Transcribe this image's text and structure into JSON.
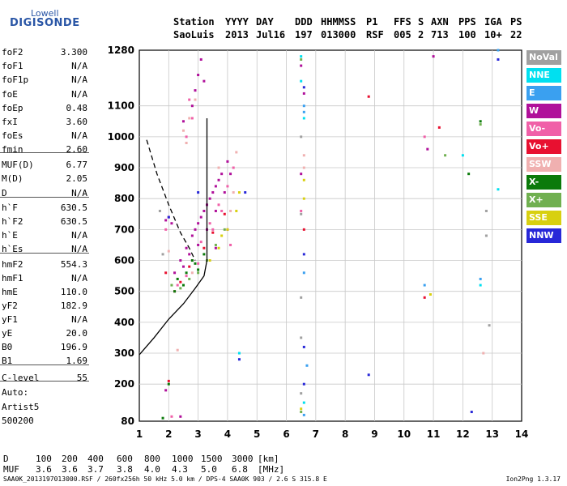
{
  "logo": {
    "top": "Lowell",
    "bottom": "DIGISONDE"
  },
  "header": {
    "row1": [
      "Station",
      "YYYY",
      "DAY",
      "DDD",
      "HHMMSS",
      "P1",
      "FFS",
      "S",
      "AXN",
      "PPS",
      "IGA",
      "PS"
    ],
    "row2": [
      "SaoLuis",
      "2013",
      "Jul16",
      "197",
      "013000",
      "RSF",
      "005",
      "2",
      "713",
      "100",
      "10+",
      "22"
    ]
  },
  "params": [
    {
      "k": "foF2",
      "v": "3.300"
    },
    {
      "k": "foF1",
      "v": "N/A"
    },
    {
      "k": "foF1p",
      "v": "N/A"
    },
    {
      "k": "foE",
      "v": "N/A"
    },
    {
      "k": "foEp",
      "v": "0.48"
    },
    {
      "k": "fxI",
      "v": "3.60"
    },
    {
      "k": "foEs",
      "v": "N/A"
    },
    {
      "k": "fmin",
      "v": "2.60"
    },
    {
      "k": "MUF(D)",
      "v": "6.77"
    },
    {
      "k": "M(D)",
      "v": "2.05"
    },
    {
      "k": "D",
      "v": "N/A"
    },
    {
      "k": "h`F",
      "v": "630.5"
    },
    {
      "k": "h`F2",
      "v": "630.5"
    },
    {
      "k": "h`E",
      "v": "N/A"
    },
    {
      "k": "h`Es",
      "v": "N/A"
    },
    {
      "k": "hmF2",
      "v": "554.3"
    },
    {
      "k": "hmF1",
      "v": "N/A"
    },
    {
      "k": "hmE",
      "v": "110.0"
    },
    {
      "k": "yF2",
      "v": "182.9"
    },
    {
      "k": "yF1",
      "v": "N/A"
    },
    {
      "k": "yE",
      "v": "20.0"
    },
    {
      "k": "B0",
      "v": "196.9"
    },
    {
      "k": "B1",
      "v": "1.69"
    },
    {
      "k": "C-level",
      "v": "55"
    }
  ],
  "auto": {
    "line1": "Auto:",
    "line2": "Artist5",
    "line3": "500200"
  },
  "bottom_table": {
    "d_label": "D",
    "d_values": [
      "100",
      "200",
      "400",
      "600",
      "800",
      "1000",
      "1500",
      "3000"
    ],
    "d_unit": "[km]",
    "muf_label": "MUF",
    "muf_values": [
      "3.6",
      "3.6",
      "3.7",
      "3.8",
      "4.0",
      "4.3",
      "5.0",
      "6.8"
    ],
    "muf_unit": "[MHz]"
  },
  "footer": {
    "left": "SAA0K_2013197013000.RSF / 260fx256h 50 kHz 5.0 km / DPS-4 SAA0K 903 / 2.6 S 315.8 E",
    "right": "Ion2Png 1.3.17"
  },
  "legend": [
    {
      "label": "NoVal",
      "color": "#a0a0a0"
    },
    {
      "label": "NNE",
      "color": "#00e0f0"
    },
    {
      "label": "E",
      "color": "#3aa0f0"
    },
    {
      "label": "W",
      "color": "#b0109a"
    },
    {
      "label": "Vo-",
      "color": "#f060a8"
    },
    {
      "label": "Vo+",
      "color": "#e81030"
    },
    {
      "label": "SSW",
      "color": "#f0b0b0"
    },
    {
      "label": "X-",
      "color": "#0a7a0a"
    },
    {
      "label": "X+",
      "color": "#70b050"
    },
    {
      "label": "SSE",
      "color": "#d8d010"
    },
    {
      "label": "NNW",
      "color": "#2828d8"
    }
  ],
  "chart_data": {
    "type": "scatter",
    "title": "",
    "xlabel": "",
    "ylabel": "",
    "xlim": [
      1,
      14
    ],
    "ylim": [
      80,
      1280
    ],
    "x_ticks": [
      1,
      2,
      3,
      4,
      5,
      6,
      7,
      8,
      9,
      10,
      11,
      12,
      13,
      14
    ],
    "y_ticks": [
      80,
      200,
      300,
      400,
      500,
      600,
      700,
      800,
      900,
      1000,
      1100,
      1280
    ],
    "grid": true,
    "legend_position": "right",
    "profile_curve": [
      [
        1.0,
        295
      ],
      [
        1.5,
        350
      ],
      [
        2.0,
        410
      ],
      [
        2.5,
        460
      ],
      [
        2.9,
        510
      ],
      [
        3.2,
        550
      ],
      [
        3.3,
        600
      ],
      [
        3.3,
        800
      ],
      [
        3.3,
        1060
      ]
    ],
    "dashed_trace": [
      [
        1.25,
        990
      ],
      [
        1.6,
        880
      ],
      [
        2.0,
        780
      ],
      [
        2.4,
        690
      ],
      [
        2.7,
        640
      ],
      [
        2.9,
        600
      ]
    ],
    "series": [
      {
        "name": "W",
        "color": "#b0109a",
        "points": [
          [
            2.2,
            560
          ],
          [
            2.4,
            600
          ],
          [
            2.6,
            640
          ],
          [
            2.8,
            680
          ],
          [
            3.0,
            720
          ],
          [
            3.2,
            760
          ],
          [
            3.4,
            800
          ],
          [
            3.6,
            840
          ],
          [
            3.8,
            880
          ],
          [
            4.0,
            920
          ],
          [
            2.9,
            700
          ],
          [
            3.1,
            740
          ],
          [
            3.3,
            780
          ],
          [
            3.5,
            820
          ],
          [
            3.7,
            860
          ],
          [
            2.5,
            580
          ],
          [
            2.7,
            620
          ],
          [
            3.0,
            650
          ],
          [
            3.3,
            700
          ],
          [
            3.6,
            760
          ],
          [
            3.9,
            820
          ],
          [
            4.1,
            880
          ],
          [
            1.9,
            730
          ],
          [
            2.0,
            740
          ],
          [
            2.1,
            720
          ],
          [
            2.9,
            1150
          ],
          [
            3.0,
            1200
          ],
          [
            3.1,
            1250
          ],
          [
            2.8,
            1100
          ],
          [
            3.2,
            1180
          ],
          [
            6.6,
            1140
          ],
          [
            6.5,
            1230
          ],
          [
            6.5,
            880
          ],
          [
            11.0,
            1260
          ],
          [
            10.8,
            960
          ],
          [
            2.5,
            1050
          ],
          [
            1.9,
            180
          ],
          [
            2.4,
            95
          ],
          [
            4.0,
            700
          ],
          [
            3.6,
            640
          ]
        ]
      },
      {
        "name": "Vo-",
        "color": "#f060a8",
        "points": [
          [
            2.6,
            550
          ],
          [
            2.8,
            600
          ],
          [
            3.1,
            660
          ],
          [
            3.4,
            720
          ],
          [
            3.7,
            780
          ],
          [
            4.0,
            840
          ],
          [
            4.2,
            900
          ],
          [
            3.5,
            700
          ],
          [
            3.8,
            760
          ],
          [
            2.3,
            520
          ],
          [
            3.0,
            590
          ],
          [
            2.8,
            1060
          ],
          [
            2.6,
            1000
          ],
          [
            2.7,
            1120
          ],
          [
            1.9,
            700
          ],
          [
            4.1,
            650
          ],
          [
            10.7,
            1000
          ],
          [
            6.5,
            760
          ],
          [
            2.1,
            95
          ]
        ]
      },
      {
        "name": "Vo+",
        "color": "#e81030",
        "points": [
          [
            2.4,
            530
          ],
          [
            2.7,
            580
          ],
          [
            3.2,
            640
          ],
          [
            3.5,
            690
          ],
          [
            3.9,
            750
          ],
          [
            2.2,
            500
          ],
          [
            1.9,
            560
          ],
          [
            8.8,
            1130
          ],
          [
            11.2,
            1030
          ],
          [
            10.7,
            480
          ],
          [
            2.0,
            210
          ],
          [
            6.6,
            700
          ]
        ]
      },
      {
        "name": "SSW",
        "color": "#f0b0b0",
        "points": [
          [
            2.5,
            1020
          ],
          [
            2.6,
            980
          ],
          [
            2.7,
            1060
          ],
          [
            2.9,
            1120
          ],
          [
            4.3,
            950
          ],
          [
            4.2,
            820
          ],
          [
            4.1,
            760
          ],
          [
            3.7,
            900
          ],
          [
            2.8,
            560
          ],
          [
            2.0,
            630
          ],
          [
            6.6,
            940
          ],
          [
            6.6,
            900
          ],
          [
            12.7,
            300
          ],
          [
            2.3,
            310
          ]
        ]
      },
      {
        "name": "X-",
        "color": "#0a7a0a",
        "points": [
          [
            2.3,
            540
          ],
          [
            2.6,
            560
          ],
          [
            2.9,
            590
          ],
          [
            3.2,
            620
          ],
          [
            2.5,
            520
          ],
          [
            2.8,
            600
          ],
          [
            3.0,
            570
          ],
          [
            2.2,
            500
          ],
          [
            12.6,
            1050
          ],
          [
            12.2,
            880
          ],
          [
            2.0,
            200
          ],
          [
            1.8,
            90
          ]
        ]
      },
      {
        "name": "X+",
        "color": "#70b050",
        "points": [
          [
            2.4,
            510
          ],
          [
            2.7,
            540
          ],
          [
            3.0,
            560
          ],
          [
            3.3,
            600
          ],
          [
            3.6,
            650
          ],
          [
            3.9,
            700
          ],
          [
            2.1,
            520
          ],
          [
            11.4,
            940
          ],
          [
            12.6,
            1040
          ],
          [
            6.5,
            1250
          ],
          [
            6.5,
            110
          ]
        ]
      },
      {
        "name": "SSE",
        "color": "#d8d010",
        "points": [
          [
            3.4,
            600
          ],
          [
            3.7,
            640
          ],
          [
            4.0,
            700
          ],
          [
            4.3,
            760
          ],
          [
            3.8,
            680
          ],
          [
            4.4,
            820
          ],
          [
            6.6,
            800
          ],
          [
            6.6,
            860
          ],
          [
            10.9,
            490
          ],
          [
            6.5,
            120
          ]
        ]
      },
      {
        "name": "E",
        "color": "#3aa0f0",
        "points": [
          [
            6.6,
            1100
          ],
          [
            6.6,
            1080
          ],
          [
            6.6,
            560
          ],
          [
            6.7,
            260
          ],
          [
            6.6,
            100
          ],
          [
            13.2,
            1280
          ],
          [
            12.6,
            540
          ],
          [
            10.7,
            520
          ]
        ]
      },
      {
        "name": "NNE",
        "color": "#00e0f0",
        "points": [
          [
            6.5,
            1260
          ],
          [
            6.5,
            1180
          ],
          [
            6.6,
            1060
          ],
          [
            12.6,
            520
          ],
          [
            12.0,
            940
          ],
          [
            6.6,
            140
          ],
          [
            4.4,
            300
          ],
          [
            13.2,
            830
          ]
        ]
      },
      {
        "name": "NNW",
        "color": "#2828d8",
        "points": [
          [
            6.6,
            1160
          ],
          [
            6.6,
            620
          ],
          [
            6.6,
            320
          ],
          [
            6.6,
            200
          ],
          [
            3.0,
            820
          ],
          [
            4.4,
            280
          ],
          [
            4.6,
            820
          ],
          [
            12.3,
            110
          ],
          [
            8.8,
            230
          ],
          [
            13.2,
            1250
          ],
          [
            2.0,
            740
          ]
        ]
      },
      {
        "name": "NoVal",
        "color": "#a0a0a0",
        "points": [
          [
            6.5,
            1000
          ],
          [
            6.5,
            750
          ],
          [
            6.5,
            480
          ],
          [
            6.5,
            350
          ],
          [
            6.5,
            170
          ],
          [
            1.8,
            620
          ],
          [
            1.7,
            760
          ],
          [
            12.8,
            760
          ],
          [
            12.8,
            680
          ],
          [
            12.9,
            390
          ]
        ]
      }
    ]
  }
}
